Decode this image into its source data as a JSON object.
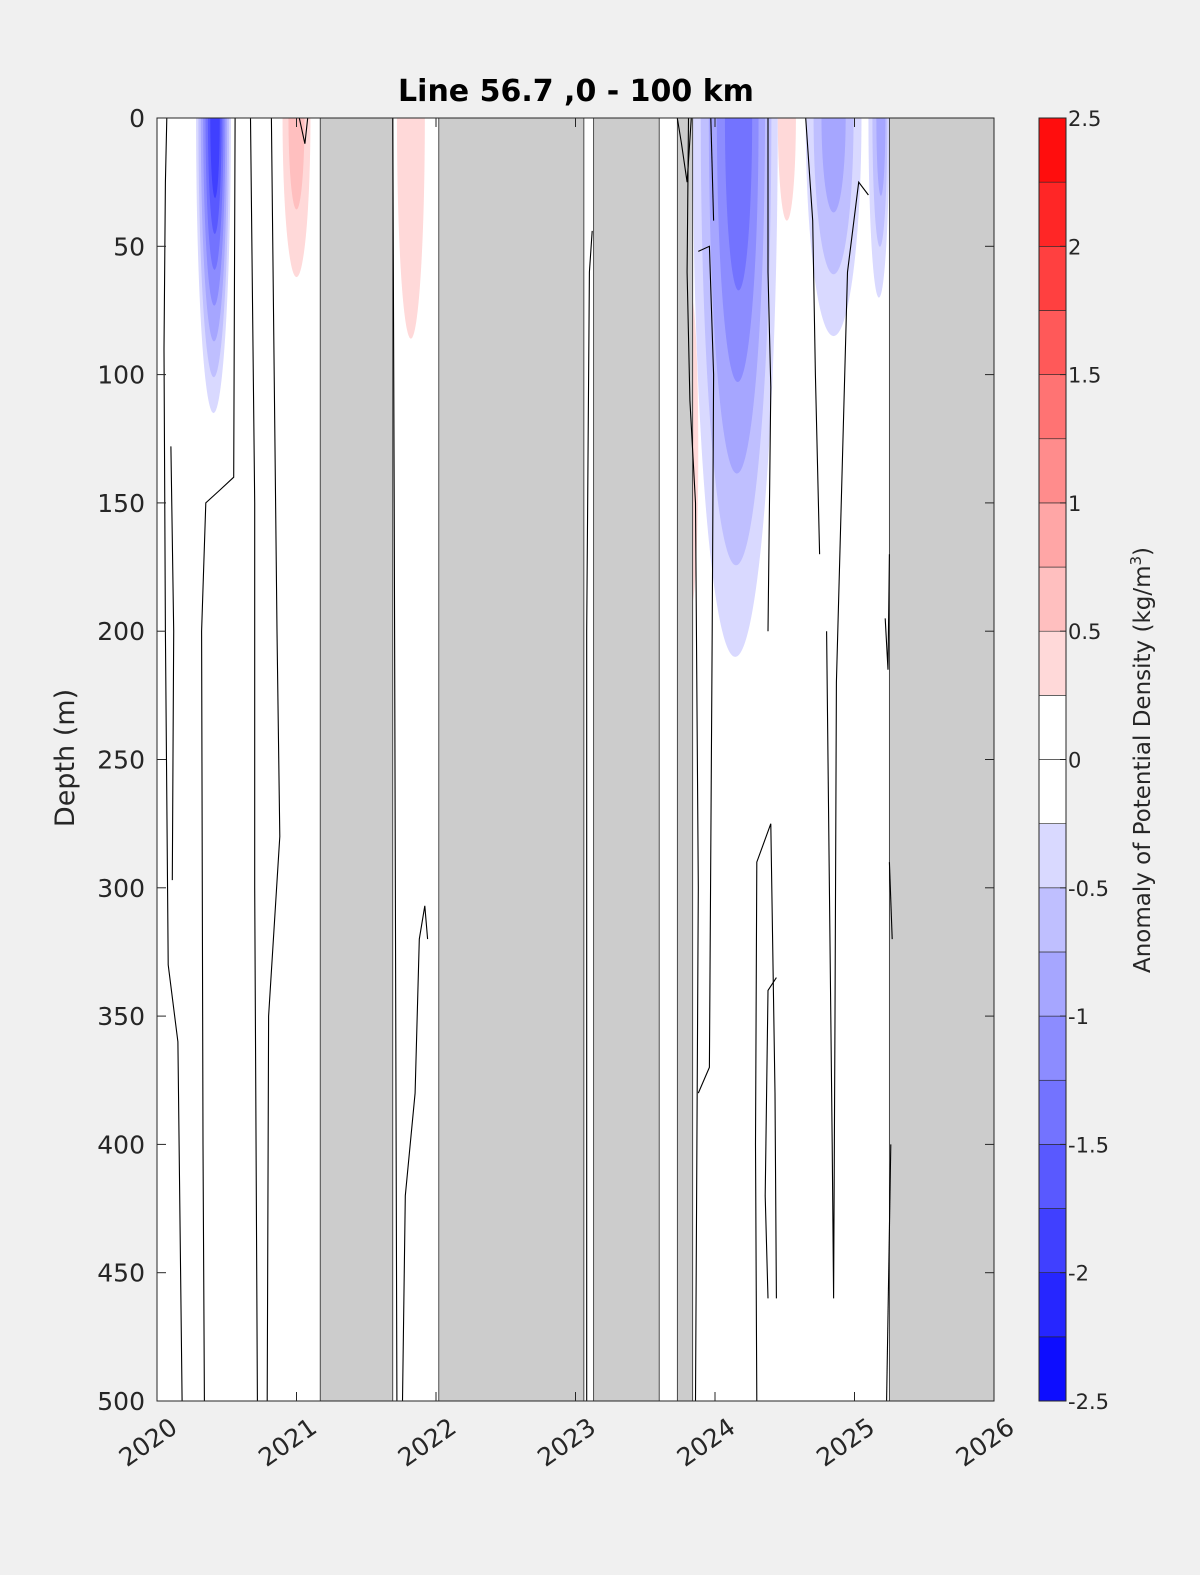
{
  "chart_data": {
    "type": "heatmap",
    "title": "Line 56.7 ,0 - 100 km",
    "ylabel": "Depth (m)",
    "xlabel": "",
    "xlim": [
      2020,
      2026
    ],
    "ylim": [
      0,
      500
    ],
    "y_reversed": true,
    "x_ticks": [
      "2020",
      "2021",
      "2022",
      "2023",
      "2024",
      "2025",
      "2026"
    ],
    "y_ticks": [
      "0",
      "50",
      "100",
      "150",
      "200",
      "250",
      "300",
      "350",
      "400",
      "450",
      "500"
    ],
    "colorbar": {
      "label": "Anomaly of Potential Density (kg/m³)",
      "label_main": "Anomaly of Potential Density (kg/m",
      "label_sup": "3",
      "label_close": ")",
      "range": [
        -2.5,
        2.5
      ],
      "step": 0.25,
      "tick_labels": [
        "-2.5",
        "-2",
        "-1.5",
        "-1",
        "-0.5",
        "0",
        "0.5",
        "1",
        "1.5",
        "2",
        "2.5"
      ],
      "low_color": "#0000ff",
      "mid_color": "#ffffff",
      "high_color": "#ff0000"
    },
    "no_data_color": "#cccccc",
    "no_data_periods": [
      [
        2021.17,
        2021.69
      ],
      [
        2022.02,
        2023.06
      ],
      [
        2023.13,
        2023.6
      ],
      [
        2023.73,
        2023.84
      ],
      [
        2025.25,
        2026.0
      ]
    ],
    "anomaly_patches": [
      {
        "x": [
          2020.28,
          2020.53
        ],
        "depth": [
          0,
          115
        ],
        "peak": -1.9,
        "peak_x": 2020.42,
        "peak_depth": 20
      },
      {
        "x": [
          2020.9,
          2021.1
        ],
        "depth": [
          0,
          62
        ],
        "peak": 0.6,
        "peak_x": 2021.0,
        "peak_depth": 30
      },
      {
        "x": [
          2021.72,
          2021.92
        ],
        "depth": [
          0,
          86
        ],
        "peak": 0.35,
        "peak_x": 2021.82,
        "peak_depth": 30
      },
      {
        "x": [
          2023.84,
          2024.45
        ],
        "depth": [
          0,
          210
        ],
        "peak": -1.3,
        "peak_x": 2024.18,
        "peak_depth": 30
      },
      {
        "x": [
          2024.45,
          2024.58
        ],
        "depth": [
          0,
          40
        ],
        "peak": 0.4,
        "peak_x": 2024.5,
        "peak_depth": 15
      },
      {
        "x": [
          2024.65,
          2025.05
        ],
        "depth": [
          0,
          85
        ],
        "peak": -0.9,
        "peak_x": 2024.85,
        "peak_depth": 30
      },
      {
        "x": [
          2025.1,
          2025.25
        ],
        "depth": [
          0,
          70
        ],
        "peak": -0.8,
        "peak_x": 2025.2,
        "peak_depth": 20
      },
      {
        "x": [
          2023.78,
          2023.88
        ],
        "depth": [
          130,
          190
        ],
        "peak": 0.35,
        "peak_x": 2023.84,
        "peak_depth": 160
      }
    ],
    "zero_contours": [
      [
        [
          2020.07,
          0
        ],
        [
          2020.06,
          25
        ],
        [
          2020.05,
          90
        ],
        [
          2020.06,
          200
        ],
        [
          2020.08,
          330
        ],
        [
          2020.15,
          360
        ],
        [
          2020.18,
          500
        ]
      ],
      [
        [
          2020.1,
          128
        ],
        [
          2020.12,
          200
        ],
        [
          2020.11,
          297
        ]
      ],
      [
        [
          2020.34,
          500
        ],
        [
          2020.33,
          400
        ],
        [
          2020.32,
          200
        ],
        [
          2020.35,
          150
        ],
        [
          2020.45,
          145
        ],
        [
          2020.55,
          140
        ],
        [
          2020.56,
          0
        ]
      ],
      [
        [
          2020.67,
          0
        ],
        [
          2020.7,
          150
        ],
        [
          2020.7,
          300
        ],
        [
          2020.72,
          500
        ]
      ],
      [
        [
          2020.82,
          0
        ],
        [
          2020.86,
          200
        ],
        [
          2020.88,
          280
        ],
        [
          2020.8,
          350
        ],
        [
          2020.79,
          500
        ]
      ],
      [
        [
          2021.02,
          0
        ],
        [
          2021.06,
          10
        ],
        [
          2021.08,
          0
        ]
      ],
      [
        [
          2021.69,
          0
        ],
        [
          2021.7,
          150
        ],
        [
          2021.72,
          500
        ]
      ],
      [
        [
          2021.76,
          500
        ],
        [
          2021.78,
          420
        ],
        [
          2021.85,
          380
        ],
        [
          2021.88,
          320
        ],
        [
          2021.92,
          307
        ],
        [
          2021.94,
          320
        ]
      ],
      [
        [
          2023.08,
          500
        ],
        [
          2023.08,
          200
        ],
        [
          2023.1,
          60
        ],
        [
          2023.12,
          44
        ]
      ],
      [
        [
          2023.73,
          0
        ],
        [
          2023.76,
          10
        ],
        [
          2023.8,
          25
        ],
        [
          2023.83,
          0
        ]
      ],
      [
        [
          2023.86,
          500
        ],
        [
          2023.88,
          300
        ],
        [
          2023.86,
          150
        ],
        [
          2023.82,
          110
        ],
        [
          2023.8,
          60
        ],
        [
          2023.81,
          0
        ]
      ],
      [
        [
          2023.88,
          52
        ],
        [
          2023.96,
          50
        ],
        [
          2023.99,
          100
        ],
        [
          2023.98,
          200
        ],
        [
          2023.96,
          370
        ],
        [
          2023.88,
          380
        ]
      ],
      [
        [
          2023.97,
          0
        ],
        [
          2023.99,
          40
        ]
      ],
      [
        [
          2024.3,
          500
        ],
        [
          2024.29,
          400
        ],
        [
          2024.3,
          290
        ],
        [
          2024.4,
          275
        ],
        [
          2024.43,
          380
        ],
        [
          2024.44,
          460
        ]
      ],
      [
        [
          2024.38,
          460
        ],
        [
          2024.36,
          420
        ],
        [
          2024.38,
          340
        ],
        [
          2024.44,
          335
        ]
      ],
      [
        [
          2024.38,
          0
        ],
        [
          2024.38,
          60
        ],
        [
          2024.4,
          105
        ],
        [
          2024.38,
          200
        ]
      ],
      [
        [
          2024.65,
          0
        ],
        [
          2024.7,
          40
        ],
        [
          2024.72,
          100
        ],
        [
          2024.75,
          170
        ]
      ],
      [
        [
          2024.8,
          200
        ],
        [
          2024.82,
          300
        ],
        [
          2024.84,
          400
        ],
        [
          2024.85,
          460
        ],
        [
          2024.86,
          350
        ],
        [
          2024.87,
          220
        ],
        [
          2024.95,
          60
        ],
        [
          2025.03,
          25
        ],
        [
          2025.1,
          30
        ]
      ],
      [
        [
          2025.22,
          195
        ],
        [
          2025.24,
          215
        ],
        [
          2025.25,
          170
        ]
      ],
      [
        [
          2025.25,
          290
        ],
        [
          2025.27,
          320
        ]
      ],
      [
        [
          2025.23,
          500
        ],
        [
          2025.26,
          400
        ]
      ]
    ]
  }
}
